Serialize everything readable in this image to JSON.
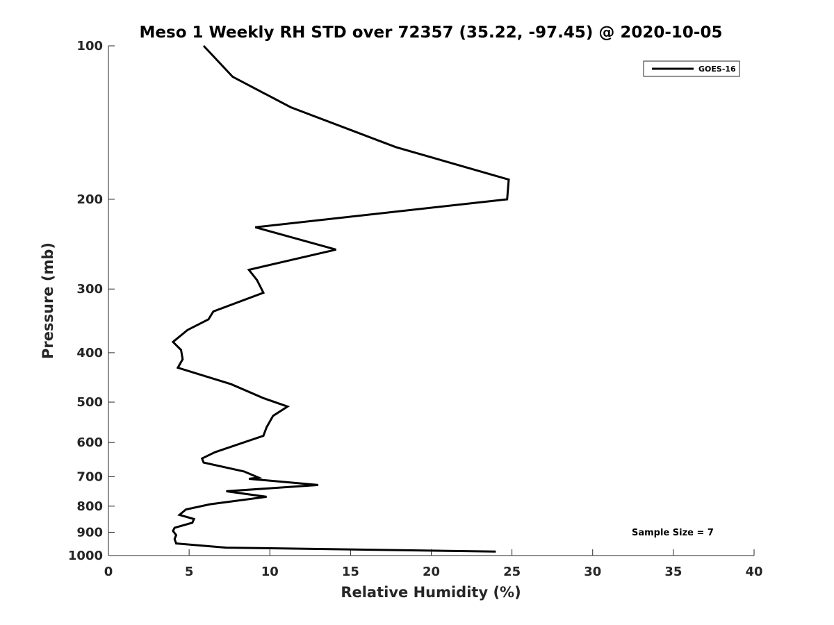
{
  "chart_data": {
    "type": "line",
    "title": "Meso 1 Weekly RH STD over 72357 (35.22, -97.45) @ 2020-10-05",
    "xlabel": "Relative Humidity (%)",
    "ylabel": "Pressure (mb)",
    "xlim": [
      0,
      40
    ],
    "ylim": [
      100,
      1000
    ],
    "yscale": "log",
    "y_reversed": true,
    "x_ticks": [
      0,
      5,
      10,
      15,
      20,
      25,
      30,
      35,
      40
    ],
    "y_ticks": [
      100,
      200,
      300,
      400,
      500,
      600,
      700,
      800,
      900,
      1000
    ],
    "legend": {
      "position": "top-right",
      "entries": [
        "GOES-16"
      ]
    },
    "annotation": "Sample Size = 7",
    "series": [
      {
        "name": "GOES-16",
        "color": "#000000",
        "x": [
          5.9,
          7.7,
          11.3,
          17.8,
          24.8,
          24.7,
          9.1,
          14.1,
          8.7,
          9.2,
          9.6,
          6.5,
          6.2,
          4.9,
          4.0,
          4.5,
          4.6,
          4.3,
          7.6,
          9.6,
          11.1,
          10.2,
          9.8,
          9.6,
          6.6,
          5.8,
          5.9,
          8.4,
          9.3,
          8.7,
          13.0,
          7.3,
          9.8,
          6.3,
          4.8,
          4.4,
          5.3,
          5.2,
          4.1,
          4.0,
          4.2,
          4.1,
          4.2,
          7.3,
          24.0
        ],
        "y": [
          100,
          115,
          132,
          158,
          183,
          200,
          227,
          251,
          275,
          288,
          305,
          332,
          344,
          361,
          381,
          395,
          412,
          428,
          461,
          491,
          510,
          532,
          560,
          582,
          627,
          645,
          657,
          684,
          703,
          707,
          727,
          748,
          767,
          793,
          812,
          832,
          848,
          862,
          882,
          895,
          912,
          928,
          947,
          965,
          982
        ]
      }
    ]
  }
}
